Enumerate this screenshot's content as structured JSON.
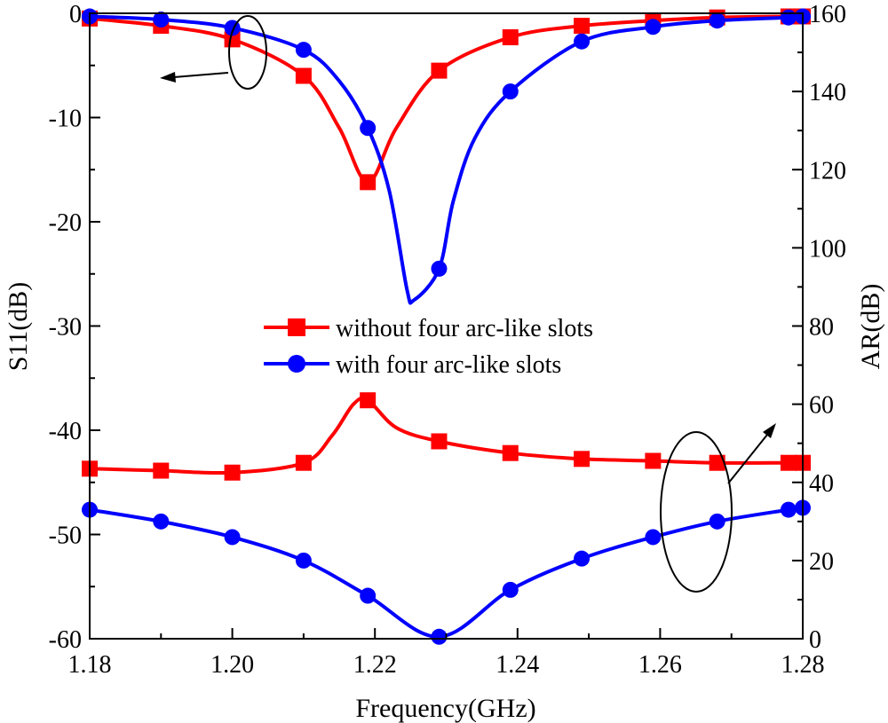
{
  "chart_data": {
    "type": "line",
    "xlabel": "Frequency(GHz)",
    "ylabel_left": "S11(dB)",
    "ylabel_right": "AR(dB)",
    "xlim": [
      1.18,
      1.28
    ],
    "ylim_left": [
      -60,
      0
    ],
    "ylim_right": [
      0,
      160
    ],
    "x_ticks": [
      "1.18",
      "1.20",
      "1.22",
      "1.24",
      "1.26",
      "1.28"
    ],
    "y_left_ticks": [
      "0",
      "-10",
      "-20",
      "-30",
      "-40",
      "-50",
      "-60"
    ],
    "y_right_ticks": [
      "160",
      "140",
      "120",
      "100",
      "80",
      "60",
      "40",
      "20",
      "0"
    ],
    "grid": false,
    "legend_position": "center",
    "series": [
      {
        "name": "without four arc-like slots",
        "axis": "left",
        "quantity": "S11",
        "color": "#ff0000",
        "marker": "square",
        "x": [
          1.18,
          1.19,
          1.2,
          1.21,
          1.215,
          1.219,
          1.223,
          1.229,
          1.239,
          1.249,
          1.259,
          1.268,
          1.278,
          1.28
        ],
        "y": [
          -0.5,
          -1.2,
          -2.5,
          -6.0,
          -11.0,
          -16.2,
          -11.0,
          -5.5,
          -2.3,
          -1.2,
          -0.7,
          -0.4,
          -0.3,
          -0.3
        ],
        "markers_x": [
          1.18,
          1.19,
          1.2,
          1.21,
          1.219,
          1.229,
          1.239,
          1.249,
          1.259,
          1.268,
          1.278,
          1.28
        ],
        "markers_y": [
          -0.5,
          -1.2,
          -2.5,
          -6.0,
          -16.2,
          -5.5,
          -2.3,
          -1.2,
          -0.7,
          -0.4,
          -0.3,
          -0.3
        ]
      },
      {
        "name": "with four arc-like slots",
        "axis": "left",
        "quantity": "S11",
        "color": "#0000ff",
        "marker": "circle",
        "x": [
          1.18,
          1.19,
          1.2,
          1.21,
          1.215,
          1.219,
          1.222,
          1.2245,
          1.2255,
          1.229,
          1.231,
          1.234,
          1.239,
          1.249,
          1.259,
          1.268,
          1.278,
          1.28
        ],
        "y": [
          -0.3,
          -0.6,
          -1.4,
          -3.5,
          -6.5,
          -11.0,
          -17.0,
          -26.5,
          -27.5,
          -24.5,
          -18.0,
          -12.0,
          -7.5,
          -2.7,
          -1.3,
          -0.7,
          -0.4,
          -0.3
        ],
        "markers_x": [
          1.18,
          1.19,
          1.2,
          1.21,
          1.219,
          1.229,
          1.239,
          1.249,
          1.259,
          1.268,
          1.278,
          1.28
        ],
        "markers_y": [
          -0.3,
          -0.6,
          -1.4,
          -3.5,
          -11.0,
          -24.5,
          -7.5,
          -2.7,
          -1.3,
          -0.7,
          -0.4,
          -0.3
        ]
      },
      {
        "name": "without four arc-like slots",
        "axis": "right",
        "quantity": "AR",
        "color": "#ff0000",
        "marker": "square",
        "x": [
          1.18,
          1.19,
          1.2,
          1.21,
          1.214,
          1.217,
          1.219,
          1.223,
          1.229,
          1.239,
          1.249,
          1.259,
          1.268,
          1.278,
          1.28
        ],
        "y": [
          43.5,
          43.0,
          42.5,
          45.0,
          52.0,
          60.0,
          61.0,
          54.0,
          50.5,
          47.5,
          46.0,
          45.5,
          45.0,
          45.0,
          45.0
        ],
        "markers_x": [
          1.18,
          1.19,
          1.2,
          1.21,
          1.219,
          1.229,
          1.239,
          1.249,
          1.259,
          1.268,
          1.278,
          1.28
        ],
        "markers_y": [
          43.5,
          43.0,
          42.5,
          45.0,
          61.0,
          50.5,
          47.5,
          46.0,
          45.5,
          45.0,
          45.0,
          45.0
        ]
      },
      {
        "name": "with four arc-like slots",
        "axis": "right",
        "quantity": "AR",
        "color": "#0000ff",
        "marker": "circle",
        "x": [
          1.18,
          1.19,
          1.2,
          1.21,
          1.219,
          1.229,
          1.239,
          1.249,
          1.259,
          1.268,
          1.278,
          1.28
        ],
        "y": [
          33,
          30,
          26,
          20,
          11,
          0.5,
          12.5,
          20.5,
          26,
          30,
          33,
          33.5
        ],
        "markers_x": [
          1.18,
          1.19,
          1.2,
          1.21,
          1.219,
          1.229,
          1.239,
          1.249,
          1.259,
          1.268,
          1.278,
          1.28
        ],
        "markers_y": [
          33,
          30,
          26,
          20,
          11,
          0.5,
          12.5,
          20.5,
          26,
          30,
          33,
          33.5
        ]
      }
    ],
    "legend": [
      {
        "label": "without four arc-like slots",
        "color": "#ff0000",
        "marker": "square"
      },
      {
        "label": "with four arc-like slots",
        "color": "#0000ff",
        "marker": "circle"
      }
    ]
  }
}
